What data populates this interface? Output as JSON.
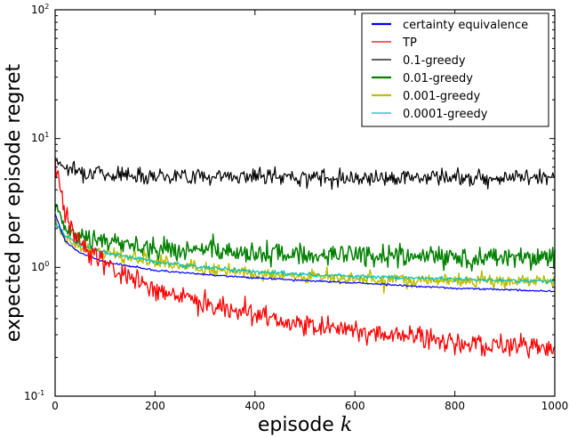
{
  "chart_data": {
    "type": "line",
    "title": "",
    "xlabel": "episode k",
    "ylabel": "expected per episode regret",
    "xlim": [
      0,
      1000
    ],
    "ylim": [
      0.1,
      100
    ],
    "yscale": "log",
    "grid": false,
    "legend_position": "upper right",
    "x_ticks": [
      "0",
      "200",
      "400",
      "600",
      "800",
      "1000"
    ],
    "y_ticks": [
      "10^-1",
      "10^0",
      "10^1",
      "10^2"
    ],
    "x": [
      0,
      20,
      50,
      100,
      200,
      300,
      400,
      500,
      600,
      700,
      800,
      900,
      1000
    ],
    "series": [
      {
        "name": "certainty equivalence",
        "color": "#0000ff",
        "width": 1.2,
        "noise": 0.005,
        "values": [
          2.6,
          1.6,
          1.3,
          1.1,
          0.95,
          0.88,
          0.83,
          0.79,
          0.76,
          0.72,
          0.69,
          0.67,
          0.65
        ]
      },
      {
        "name": "TP",
        "color": "#ff0000",
        "width": 1.3,
        "noise": 0.06,
        "values": [
          6.5,
          2.6,
          1.6,
          1.05,
          0.68,
          0.52,
          0.43,
          0.36,
          0.32,
          0.29,
          0.26,
          0.25,
          0.24
        ]
      },
      {
        "name": "0.1-greedy",
        "color": "#000000",
        "width": 1.2,
        "noise": 0.045,
        "values": [
          7.0,
          6.0,
          5.6,
          5.3,
          5.2,
          5.1,
          5.1,
          5.0,
          5.0,
          5.0,
          5.0,
          5.0,
          5.0
        ]
      },
      {
        "name": "0.01-greedy",
        "color": "#008000",
        "width": 1.5,
        "noise": 0.06,
        "values": [
          3.0,
          2.0,
          1.7,
          1.6,
          1.4,
          1.35,
          1.3,
          1.25,
          1.25,
          1.22,
          1.2,
          1.2,
          1.2
        ]
      },
      {
        "name": "0.001-greedy",
        "color": "#bfbf00",
        "width": 1.5,
        "noise": 0.035,
        "values": [
          2.4,
          1.7,
          1.45,
          1.3,
          1.1,
          0.98,
          0.9,
          0.85,
          0.82,
          0.8,
          0.79,
          0.78,
          0.77
        ]
      },
      {
        "name": "0.0001-greedy",
        "color": "#00bfbf",
        "width": 1.2,
        "noise": 0.012,
        "values": [
          2.2,
          1.75,
          1.5,
          1.3,
          1.1,
          1.0,
          0.93,
          0.88,
          0.85,
          0.83,
          0.81,
          0.79,
          0.78
        ]
      }
    ]
  }
}
